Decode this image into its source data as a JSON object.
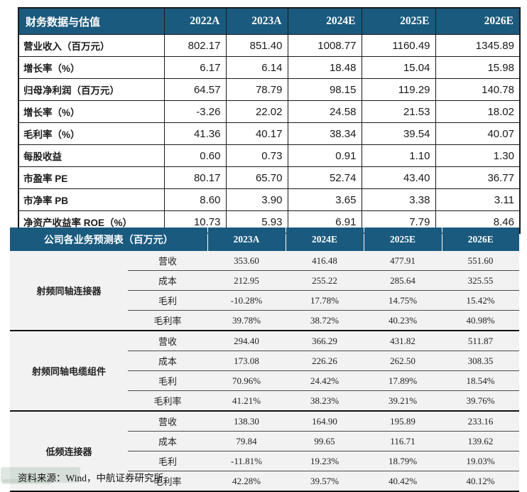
{
  "colors": {
    "header_bg": "#1a5a7e",
    "header_text": "#ffffff",
    "table2_body_bg": "#f2f2f2",
    "border": "#1a1a1a"
  },
  "table1": {
    "title": "财务数据与估值",
    "columns": [
      "2022A",
      "2023A",
      "2024E",
      "2025E",
      "2026E"
    ],
    "rows": [
      {
        "label": "营业收入（百万元）",
        "values": [
          "802.17",
          "851.40",
          "1008.77",
          "1160.49",
          "1345.89"
        ]
      },
      {
        "label": "增长率（%）",
        "values": [
          "6.17",
          "6.14",
          "18.48",
          "15.04",
          "15.98"
        ]
      },
      {
        "label": "归母净利润（百万元）",
        "values": [
          "64.57",
          "78.79",
          "98.15",
          "119.29",
          "140.78"
        ]
      },
      {
        "label": "增长率（%）",
        "values": [
          "-3.26",
          "22.02",
          "24.58",
          "21.53",
          "18.02"
        ]
      },
      {
        "label": "毛利率（%）",
        "values": [
          "41.36",
          "40.17",
          "38.34",
          "39.54",
          "40.07"
        ]
      },
      {
        "label": "每股收益",
        "values": [
          "0.60",
          "0.73",
          "0.91",
          "1.10",
          "1.30"
        ]
      },
      {
        "label": "市盈率 PE",
        "values": [
          "80.17",
          "65.70",
          "52.74",
          "43.40",
          "36.77"
        ]
      },
      {
        "label": "市净率 PB",
        "values": [
          "8.60",
          "3.90",
          "3.65",
          "3.38",
          "3.11"
        ]
      },
      {
        "label": "净资产收益率 ROE（%）",
        "values": [
          "10.73",
          "5.93",
          "6.91",
          "7.79",
          "8.46"
        ]
      }
    ]
  },
  "table2": {
    "title": "公司各业务预测表（百万元）",
    "columns": [
      "2023A",
      "2024E",
      "2025E",
      "2026E"
    ],
    "groups": [
      {
        "name": "射频同轴连接器",
        "rows": [
          {
            "metric": "营收",
            "values": [
              "353.60",
              "416.48",
              "477.91",
              "551.60"
            ]
          },
          {
            "metric": "成本",
            "values": [
              "212.95",
              "255.22",
              "285.64",
              "325.55"
            ]
          },
          {
            "metric": "毛利",
            "values": [
              "-10.28%",
              "17.78%",
              "14.75%",
              "15.42%"
            ]
          },
          {
            "metric": "毛利率",
            "values": [
              "39.78%",
              "38.72%",
              "40.23%",
              "40.98%"
            ]
          }
        ]
      },
      {
        "name": "射频同轴电缆组件",
        "rows": [
          {
            "metric": "营收",
            "values": [
              "294.40",
              "366.29",
              "431.82",
              "511.87"
            ]
          },
          {
            "metric": "成本",
            "values": [
              "173.08",
              "226.26",
              "262.50",
              "308.35"
            ]
          },
          {
            "metric": "毛利",
            "values": [
              "70.96%",
              "24.42%",
              "17.89%",
              "18.54%"
            ]
          },
          {
            "metric": "毛利率",
            "values": [
              "41.21%",
              "38.23%",
              "39.21%",
              "39.76%"
            ]
          }
        ]
      },
      {
        "name": "低频连接器",
        "rows": [
          {
            "metric": "营收",
            "values": [
              "138.30",
              "164.90",
              "195.89",
              "233.16"
            ]
          },
          {
            "metric": "成本",
            "values": [
              "79.84",
              "99.65",
              "116.71",
              "139.62"
            ]
          },
          {
            "metric": "毛利",
            "values": [
              "-11.81%",
              "19.23%",
              "18.79%",
              "19.03%"
            ]
          },
          {
            "metric": "毛利率",
            "values": [
              "42.28%",
              "39.57%",
              "40.42%",
              "40.12%"
            ]
          }
        ]
      }
    ]
  },
  "footer": {
    "source": "资料来源：Wind，中航证券研究所"
  }
}
